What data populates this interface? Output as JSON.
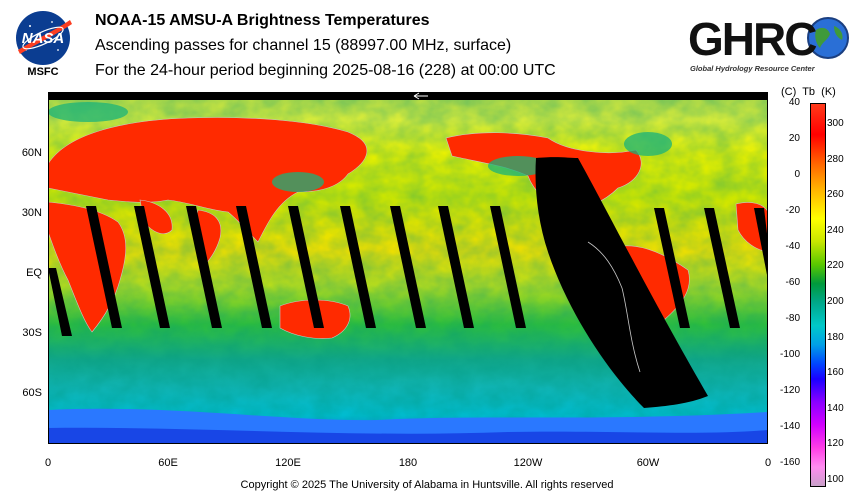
{
  "header": {
    "title": "NOAA-15 AMSU-A Brightness Temperatures",
    "subtitle": "Ascending passes for channel 15 (88997.00 MHz, surface)",
    "period": "For the 24-hour period beginning 2025-08-16 (228) at 00:00 UTC"
  },
  "logos": {
    "nasa_text": "NASA",
    "nasa_caption": "MSFC",
    "ghrc_text": "GHRC",
    "ghrc_caption": "Global Hydrology Resource Center"
  },
  "map": {
    "projection": "equirectangular",
    "lat_labels": [
      "60N",
      "30N",
      "EQ",
      "30S",
      "60S"
    ],
    "lon_labels": [
      "0",
      "60E",
      "120E",
      "180",
      "120W",
      "60W",
      "0"
    ],
    "orbit_gap": "no data (black swaths)",
    "colors": {
      "hot": "#ff2a00",
      "warm": "#ffe600",
      "mid": "#2fbf3a",
      "cool": "#00b3b3",
      "cold": "#1e64ff",
      "nodata": "#000000"
    }
  },
  "colorbar": {
    "header_c": "(C)",
    "header_tb": "Tb",
    "header_k": "(K)",
    "celsius_ticks": [
      "40",
      "20",
      "0",
      "-20",
      "-40",
      "-60",
      "-80",
      "-100",
      "-120",
      "-140",
      "-160"
    ],
    "kelvin_ticks": [
      "300",
      "280",
      "260",
      "240",
      "220",
      "200",
      "180",
      "160",
      "140",
      "120",
      "100"
    ]
  },
  "footer": {
    "copyright": "Copyright © 2025 The University of Alabama in Huntsville.  All rights reserved"
  }
}
